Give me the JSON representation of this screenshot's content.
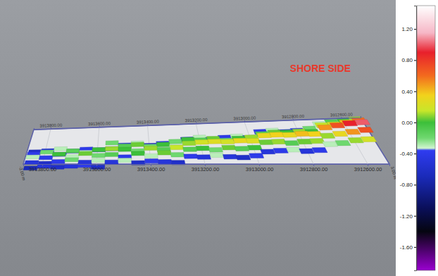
{
  "chart_data": {
    "type": "surface",
    "annotation": {
      "text": "SHORE SIDE",
      "color": "#e8392c"
    },
    "side_labels": [
      "-2.00 m",
      "3.00 m"
    ],
    "grid": true,
    "xlim": [
      3913870,
      3912520
    ],
    "xticks": [
      {
        "value": 3913800,
        "label": "3913800.00"
      },
      {
        "value": 3913600,
        "label": "3913600.00"
      },
      {
        "value": 3913400,
        "label": "3913400.00"
      },
      {
        "value": 3913200,
        "label": "3913200.00"
      },
      {
        "value": 3913000,
        "label": "3913000.00"
      },
      {
        "value": 3912800,
        "label": "3912800.00"
      },
      {
        "value": 3912600,
        "label": "3912600.00"
      }
    ],
    "x": [
      3913845,
      3913795,
      3913745,
      3913695,
      3913645,
      3913595,
      3913545,
      3913495,
      3913445,
      3913395,
      3913345,
      3913295,
      3913245,
      3913195,
      3913145,
      3913095,
      3913045,
      3912995,
      3912945,
      3912895,
      3912845,
      3912795,
      3912745,
      3912695,
      3912645,
      3912595,
      3912545
    ],
    "z": [
      [
        null,
        null,
        null,
        null,
        null,
        null,
        null,
        null,
        null,
        null,
        null,
        null,
        null,
        null,
        null,
        null,
        null,
        null,
        null,
        null,
        null,
        null,
        null,
        -0.3,
        -0.1,
        0.0,
        0.1
      ],
      [
        null,
        null,
        null,
        null,
        null,
        null,
        null,
        null,
        null,
        null,
        null,
        null,
        null,
        null,
        null,
        null,
        null,
        null,
        -0.4,
        -0.3,
        -0.5,
        -0.4,
        -0.2,
        0.15,
        0.2,
        0.4,
        0.6
      ],
      [
        null,
        null,
        null,
        null,
        null,
        null,
        null,
        null,
        null,
        null,
        null,
        null,
        -0.5,
        -0.3,
        -0.6,
        -0.4,
        -0.3,
        -0.5,
        -0.1,
        0.05,
        0.0,
        0.1,
        0.0,
        0.5,
        0.7,
        0.9,
        1.0
      ],
      [
        null,
        null,
        null,
        null,
        null,
        null,
        -0.2,
        -0.5,
        -0.3,
        -0.6,
        -0.4,
        -0.2,
        0.0,
        -0.1,
        0.05,
        -0.2,
        0.0,
        0.1,
        0.3,
        0.35,
        0.3,
        0.4,
        0.35,
        0.1,
        0.3,
        0.5,
        0.7
      ],
      [
        -0.6,
        -0.5,
        -0.3,
        -0.6,
        -0.4,
        -0.5,
        -0.4,
        -0.1,
        0.05,
        -0.2,
        0.0,
        -0.3,
        0.1,
        0.2,
        0.25,
        0.2,
        0.3,
        0.25,
        0.05,
        0.1,
        -0.1,
        0.05,
        0.1,
        -0.3,
        -0.2,
        0.1,
        0.2
      ],
      [
        -0.4,
        -0.2,
        -0.5,
        -0.1,
        -0.3,
        0.0,
        0.1,
        0.0,
        -0.2,
        0.1,
        -0.1,
        0.15,
        -0.1,
        0.0,
        -0.2,
        0.05,
        -0.1,
        0.0,
        -0.5,
        -0.4,
        -0.3,
        -0.5,
        -0.4,
        null,
        null,
        null,
        null
      ],
      [
        -0.3,
        -0.4,
        0.0,
        -0.3,
        0.05,
        -0.2,
        -0.1,
        -0.4,
        0.0,
        -0.3,
        0.05,
        -0.2,
        -0.4,
        -0.5,
        -0.3,
        -0.5,
        -0.6,
        -0.4,
        null,
        null,
        null,
        null,
        null,
        null,
        null,
        null,
        null
      ],
      [
        -0.5,
        -0.6,
        -0.4,
        -0.2,
        -0.5,
        -0.3,
        -0.5,
        -0.3,
        -0.6,
        -0.4,
        -0.5,
        -0.6,
        null,
        null,
        null,
        null,
        null,
        null,
        null,
        null,
        null,
        null,
        null,
        null,
        null,
        null,
        null
      ],
      [
        -0.7,
        -0.5,
        -0.6,
        -0.5,
        -0.4,
        -0.6,
        null,
        null,
        null,
        null,
        null,
        null,
        null,
        null,
        null,
        null,
        null,
        null,
        null,
        null,
        null,
        null,
        null,
        null,
        null,
        null,
        null
      ]
    ],
    "colorbar": {
      "range": [
        -1.9,
        1.5
      ],
      "ticks": [
        {
          "value": 1.2,
          "label": "1.20"
        },
        {
          "value": 0.8,
          "label": "0.80"
        },
        {
          "value": 0.4,
          "label": "0.40"
        },
        {
          "value": 0.0,
          "label": "0.00"
        },
        {
          "value": -0.4,
          "label": "-0.40"
        },
        {
          "value": -0.8,
          "label": "-0.80"
        },
        {
          "value": -1.2,
          "label": "-1.20"
        },
        {
          "value": -1.6,
          "label": "-1.60"
        }
      ],
      "stops": [
        {
          "value": 1.5,
          "color": "#ffffff"
        },
        {
          "value": 1.15,
          "color": "#f6b7c6"
        },
        {
          "value": 0.9,
          "color": "#e8202c"
        },
        {
          "value": 0.6,
          "color": "#f36a1e"
        },
        {
          "value": 0.35,
          "color": "#f2d21c"
        },
        {
          "value": 0.15,
          "color": "#c8e62a"
        },
        {
          "value": 0.0,
          "color": "#3cbf3a"
        },
        {
          "value": -0.2,
          "color": "#6fd86f"
        },
        {
          "value": -0.33,
          "color": "#cff5cf"
        },
        {
          "value": -0.36,
          "color": "#2f3cf0"
        },
        {
          "value": -0.7,
          "color": "#1a2ab8"
        },
        {
          "value": -1.1,
          "color": "#0a0f5a"
        },
        {
          "value": -1.4,
          "color": "#050510"
        },
        {
          "value": -1.9,
          "color": "#9a00d0"
        }
      ]
    }
  }
}
